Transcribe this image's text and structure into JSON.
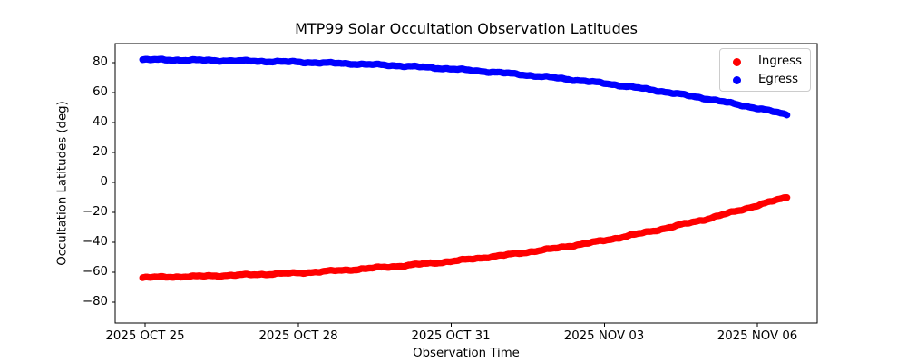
{
  "chart_data": {
    "type": "scatter",
    "title": "MTP99 Solar Occultation Observation Latitudes",
    "xlabel": "Observation Time",
    "ylabel": "Occultation Latitudes (deg)",
    "grid": false,
    "x_day0_label": "2025 OCT 25",
    "x_tick_days": [
      0,
      3,
      6,
      9,
      12
    ],
    "x_tick_labels": [
      "2025 OCT 25",
      "2025 OCT 28",
      "2025 OCT 31",
      "2025 NOV 03",
      "2025 NOV 06"
    ],
    "ytick_values": [
      80,
      60,
      40,
      20,
      0,
      -20,
      -40,
      -60,
      -80
    ],
    "ytick_labels": [
      "80",
      "60",
      "40",
      "20",
      "0",
      "−20",
      "−40",
      "−60",
      "−80"
    ],
    "xlim_days": [
      -0.587,
      13.173
    ],
    "ylim": [
      -93.9,
      92.7
    ],
    "legend": {
      "position": "upper right",
      "entries": [
        "Ingress",
        "Egress"
      ]
    },
    "series": [
      {
        "name": "Ingress",
        "color": "#ff0000",
        "marker": "o",
        "x_days": [
          -0.05,
          1,
          2,
          3,
          4,
          5,
          6,
          7,
          8,
          9,
          10,
          11,
          12,
          12.58
        ],
        "lat_deg": [
          -63.5,
          -62.7,
          -61.7,
          -60.5,
          -58.4,
          -55.8,
          -52.7,
          -48.8,
          -44.2,
          -38.8,
          -32.1,
          -24.5,
          -15.4,
          -9.8
        ]
      },
      {
        "name": "Egress",
        "color": "#0000ff",
        "marker": "o",
        "x_days": [
          -0.05,
          1,
          2,
          3,
          4,
          5,
          6,
          7,
          8,
          9,
          10,
          11,
          12,
          12.58
        ],
        "lat_deg": [
          82.0,
          81.6,
          81.1,
          80.4,
          79.3,
          77.9,
          75.8,
          73.2,
          70.0,
          66.2,
          61.5,
          56.0,
          49.5,
          45.3
        ]
      }
    ]
  }
}
